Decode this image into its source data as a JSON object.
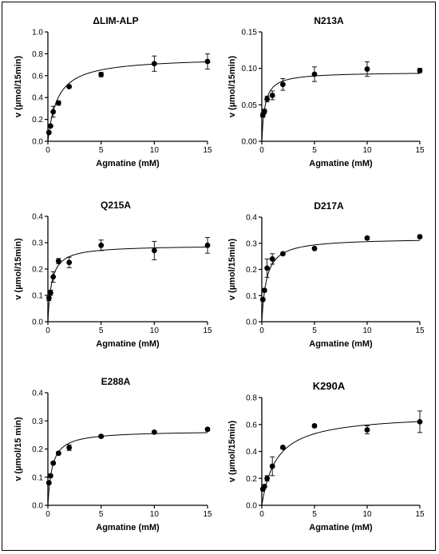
{
  "chart_data": [
    {
      "type": "scatter",
      "title": "ΔLIM-ALP",
      "xlabel": "Agmatine (mM)",
      "ylabel": "v (µmol/15min)",
      "xlim": [
        0,
        15
      ],
      "ylim": [
        0,
        1.0
      ],
      "xticks": [
        "0",
        "5",
        "10",
        "15"
      ],
      "yticks": [
        "0.0",
        "0.2",
        "0.4",
        "0.6",
        "0.8",
        "1.0"
      ],
      "x": [
        0.1,
        0.25,
        0.5,
        1,
        2,
        5,
        10,
        15
      ],
      "y": [
        0.08,
        0.14,
        0.27,
        0.35,
        0.5,
        0.61,
        0.71,
        0.73
      ],
      "err": [
        0.01,
        0.01,
        0.05,
        0.02,
        0.01,
        0.02,
        0.07,
        0.07
      ],
      "fit": {
        "vmax": 0.77,
        "km": 0.9
      }
    },
    {
      "type": "scatter",
      "title": "N213A",
      "xlabel": "Agmatine (mM)",
      "ylabel": "v (µmol/15min)",
      "xlim": [
        0,
        15
      ],
      "ylim": [
        0,
        0.15
      ],
      "xticks": [
        "0",
        "5",
        "10",
        "15"
      ],
      "yticks": [
        "0.00",
        "0.05",
        "0.10",
        "0.15"
      ],
      "x": [
        0.1,
        0.25,
        0.5,
        1,
        2,
        5,
        10,
        15
      ],
      "y": [
        0.036,
        0.041,
        0.058,
        0.063,
        0.078,
        0.092,
        0.099,
        0.097
      ],
      "err": [
        0.003,
        0.003,
        0.004,
        0.006,
        0.008,
        0.01,
        0.01,
        0.003
      ],
      "fit": {
        "vmax": 0.095,
        "km": 0.3
      }
    },
    {
      "type": "scatter",
      "title": "Q215A",
      "xlabel": "Agmatine (mM)",
      "ylabel": "v (µmol/15min)",
      "xlim": [
        0,
        15
      ],
      "ylim": [
        0,
        0.4
      ],
      "xticks": [
        "0",
        "5",
        "10",
        "15"
      ],
      "yticks": [
        "0.0",
        "0.1",
        "0.2",
        "0.3",
        "0.4"
      ],
      "x": [
        0.1,
        0.25,
        0.5,
        1,
        2,
        5,
        10,
        15
      ],
      "y": [
        0.09,
        0.11,
        0.17,
        0.23,
        0.225,
        0.29,
        0.27,
        0.29
      ],
      "err": [
        0.01,
        0.01,
        0.02,
        0.01,
        0.02,
        0.02,
        0.035,
        0.03
      ],
      "fit": {
        "vmax": 0.29,
        "km": 0.35
      }
    },
    {
      "type": "scatter",
      "title": "D217A",
      "xlabel": "Agmatine (mM)",
      "ylabel": "v (µmol/15min)",
      "xlim": [
        0,
        15
      ],
      "ylim": [
        0,
        0.4
      ],
      "xticks": [
        "0",
        "5",
        "10",
        "15"
      ],
      "yticks": [
        "0.0",
        "0.1",
        "0.2",
        "0.3",
        "0.4"
      ],
      "x": [
        0.1,
        0.25,
        0.5,
        1,
        2,
        5,
        10,
        15
      ],
      "y": [
        0.085,
        0.12,
        0.205,
        0.24,
        0.26,
        0.28,
        0.32,
        0.325
      ],
      "err": [
        0.005,
        0.005,
        0.035,
        0.02,
        0.005,
        0.005,
        0.005,
        0.005
      ],
      "fit": {
        "vmax": 0.32,
        "km": 0.45
      }
    },
    {
      "type": "scatter",
      "title": "E288A",
      "xlabel": "Agmatine (mM)",
      "ylabel": "v (µmol/15 min)",
      "xlim": [
        0,
        15
      ],
      "ylim": [
        0,
        0.4
      ],
      "xticks": [
        "0",
        "5",
        "10",
        "15"
      ],
      "yticks": [
        "0.0",
        "0.1",
        "0.2",
        "0.3",
        "0.4"
      ],
      "x": [
        0.1,
        0.25,
        0.5,
        1,
        2,
        5,
        10,
        15
      ],
      "y": [
        0.08,
        0.105,
        0.15,
        0.185,
        0.205,
        0.245,
        0.26,
        0.27
      ],
      "err": [
        0.005,
        0.005,
        0.005,
        0.005,
        0.01,
        0.005,
        0.005,
        0.005
      ],
      "fit": {
        "vmax": 0.265,
        "km": 0.4
      }
    },
    {
      "type": "scatter",
      "title": "K290A",
      "xlabel": "Agmatine (mM)",
      "ylabel": "v (µmol/15min)",
      "xlim": [
        0,
        15
      ],
      "ylim": [
        0,
        0.8
      ],
      "xticks": [
        "0",
        "5",
        "10",
        "15"
      ],
      "yticks": [
        "0.0",
        "0.2",
        "0.4",
        "0.6",
        "0.8"
      ],
      "x": [
        0.1,
        0.25,
        0.5,
        1,
        2,
        5,
        10,
        15
      ],
      "y": [
        0.12,
        0.14,
        0.2,
        0.29,
        0.43,
        0.59,
        0.56,
        0.62
      ],
      "err": [
        0.01,
        0.01,
        0.02,
        0.07,
        0.01,
        0.01,
        0.03,
        0.08
      ],
      "fit": {
        "vmax": 0.68,
        "km": 1.4
      }
    }
  ]
}
